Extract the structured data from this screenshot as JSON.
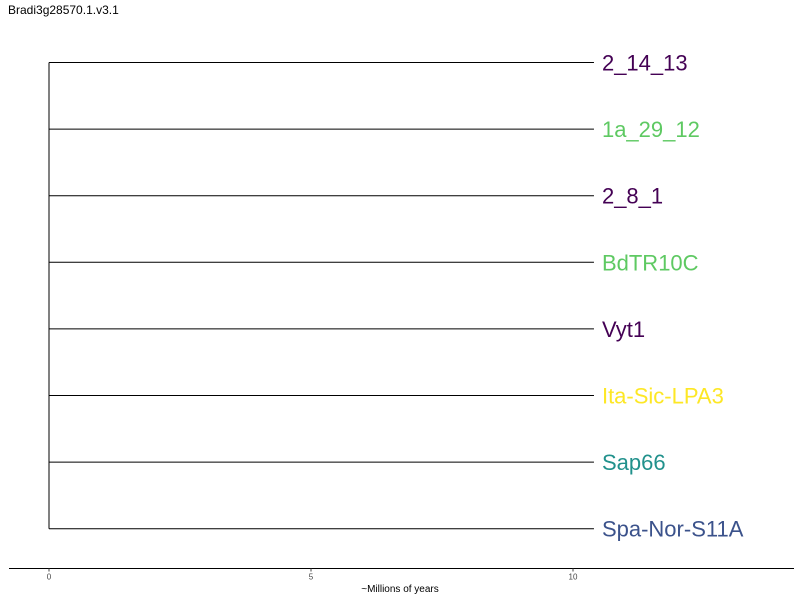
{
  "title": "Bradi3g28570.1.v3.1",
  "axis": {
    "label": "~Millions of years",
    "ticks": [
      0,
      5,
      10
    ],
    "tick_labels": [
      "0",
      "5",
      "10"
    ],
    "range": [
      0,
      14
    ]
  },
  "tree": {
    "root_age": 0,
    "tips": [
      {
        "name": "2_14_13",
        "depth": 10.4,
        "color": "#440154"
      },
      {
        "name": "1a_29_12",
        "depth": 10.4,
        "color": "#5ec962"
      },
      {
        "name": "2_8_1",
        "depth": 10.4,
        "color": "#440154"
      },
      {
        "name": "BdTR10C",
        "depth": 10.4,
        "color": "#5ec962"
      },
      {
        "name": "Vyt1",
        "depth": 10.4,
        "color": "#440154"
      },
      {
        "name": "Ita-Sic-LPA3",
        "depth": 10.4,
        "color": "#fde725"
      },
      {
        "name": "Sap66",
        "depth": 10.4,
        "color": "#21918c"
      },
      {
        "name": "Spa-Nor-S11A",
        "depth": 10.4,
        "color": "#3b528b"
      }
    ]
  }
}
